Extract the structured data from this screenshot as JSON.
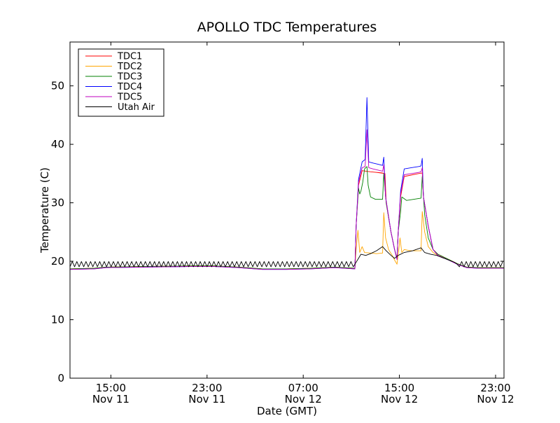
{
  "chart_data": {
    "type": "line",
    "title": "APOLLO TDC Temperatures",
    "xlabel": "Date (GMT)",
    "ylabel": "Temperature (C)",
    "x_unit": "hours from Nov 11 11:00 GMT",
    "xlim": [
      0,
      36.1
    ],
    "ylim": [
      0,
      57.5
    ],
    "yticks": [
      0,
      10,
      20,
      30,
      40,
      50
    ],
    "xticks": [
      {
        "x": 3.4,
        "time": "15:00",
        "date": "Nov 11"
      },
      {
        "x": 11.4,
        "time": "23:00",
        "date": "Nov 11"
      },
      {
        "x": 19.4,
        "time": "07:00",
        "date": "Nov 12"
      },
      {
        "x": 27.4,
        "time": "15:00",
        "date": "Nov 12"
      },
      {
        "x": 35.4,
        "time": "23:00",
        "date": "Nov 12"
      }
    ],
    "grid": false,
    "legend_position": "top-left",
    "series": [
      {
        "name": "TDC1",
        "color": "#ff0000",
        "points": [
          [
            0,
            18.7
          ],
          [
            2,
            18.8
          ],
          [
            3,
            19.0
          ],
          [
            6,
            19.1
          ],
          [
            10,
            19.2
          ],
          [
            12,
            19.2
          ],
          [
            14,
            19.0
          ],
          [
            16,
            18.7
          ],
          [
            18,
            18.7
          ],
          [
            20,
            18.8
          ],
          [
            22,
            19.0
          ],
          [
            23.7,
            18.8
          ],
          [
            23.8,
            26
          ],
          [
            24.0,
            33
          ],
          [
            24.3,
            35.5
          ],
          [
            25,
            35.3
          ],
          [
            26,
            35.1
          ],
          [
            25.5,
            35.2
          ],
          [
            26.2,
            35.0
          ],
          [
            26.3,
            30
          ],
          [
            26.7,
            25
          ],
          [
            27.0,
            22
          ],
          [
            27.2,
            20.5
          ],
          [
            27.3,
            25
          ],
          [
            27.5,
            31
          ],
          [
            27.8,
            34.5
          ],
          [
            28.5,
            34.8
          ],
          [
            29.0,
            35.0
          ],
          [
            29.3,
            35.1
          ],
          [
            29.4,
            31
          ],
          [
            29.8,
            26
          ],
          [
            30.2,
            22
          ],
          [
            30.6,
            21.2
          ],
          [
            31.5,
            20.3
          ],
          [
            32.2,
            19.6
          ],
          [
            33,
            19.0
          ],
          [
            34,
            18.9
          ],
          [
            36.1,
            18.9
          ]
        ]
      },
      {
        "name": "TDC2",
        "color": "#ffa500",
        "points": [
          [
            0,
            18.7
          ],
          [
            2,
            18.8
          ],
          [
            3,
            19.0
          ],
          [
            6,
            19.1
          ],
          [
            10,
            19.2
          ],
          [
            12,
            19.2
          ],
          [
            14,
            19.0
          ],
          [
            16,
            18.7
          ],
          [
            18,
            18.7
          ],
          [
            20,
            18.8
          ],
          [
            22,
            19.0
          ],
          [
            23.7,
            18.8
          ],
          [
            23.8,
            22
          ],
          [
            23.95,
            25.3
          ],
          [
            24.1,
            21.5
          ],
          [
            24.3,
            22.5
          ],
          [
            24.5,
            21.5
          ],
          [
            25,
            21.4
          ],
          [
            25.5,
            21.3
          ],
          [
            26.0,
            21.4
          ],
          [
            26.1,
            28.3
          ],
          [
            26.25,
            24
          ],
          [
            26.5,
            22
          ],
          [
            26.8,
            21
          ],
          [
            27.0,
            20.2
          ],
          [
            27.2,
            19.5
          ],
          [
            27.35,
            22
          ],
          [
            27.45,
            24
          ],
          [
            27.6,
            21.5
          ],
          [
            27.8,
            22.0
          ],
          [
            28.3,
            21.8
          ],
          [
            28.8,
            21.8
          ],
          [
            29.2,
            21.8
          ],
          [
            29.3,
            28.5
          ],
          [
            29.5,
            25
          ],
          [
            29.8,
            22.5
          ],
          [
            30.2,
            21.5
          ],
          [
            30.6,
            21.0
          ],
          [
            31.5,
            20.3
          ],
          [
            32.2,
            19.6
          ],
          [
            33,
            19.0
          ],
          [
            34,
            18.9
          ],
          [
            36.1,
            18.9
          ]
        ]
      },
      {
        "name": "TDC3",
        "color": "#008000",
        "points": [
          [
            0,
            18.7
          ],
          [
            2,
            18.8
          ],
          [
            3,
            19.0
          ],
          [
            6,
            19.1
          ],
          [
            10,
            19.2
          ],
          [
            12,
            19.2
          ],
          [
            14,
            19.0
          ],
          [
            16,
            18.7
          ],
          [
            18,
            18.7
          ],
          [
            20,
            18.8
          ],
          [
            22,
            19.0
          ],
          [
            23.7,
            18.8
          ],
          [
            23.8,
            26
          ],
          [
            24.0,
            32.5
          ],
          [
            24.1,
            31.5
          ],
          [
            24.2,
            32
          ],
          [
            24.35,
            33.5
          ],
          [
            24.5,
            35.8
          ],
          [
            24.7,
            36.2
          ],
          [
            24.8,
            33
          ],
          [
            25.0,
            31
          ],
          [
            25.4,
            30.6
          ],
          [
            26.0,
            30.6
          ],
          [
            26.1,
            35.0
          ],
          [
            26.3,
            30
          ],
          [
            26.7,
            25
          ],
          [
            27.0,
            22
          ],
          [
            27.2,
            20.5
          ],
          [
            27.3,
            25
          ],
          [
            27.5,
            28.5
          ],
          [
            27.6,
            31
          ],
          [
            28.0,
            30.4
          ],
          [
            28.6,
            30.6
          ],
          [
            29.2,
            30.8
          ],
          [
            29.3,
            34.5
          ],
          [
            29.5,
            28
          ],
          [
            29.8,
            24
          ],
          [
            30.2,
            22
          ],
          [
            30.6,
            21.2
          ],
          [
            31.5,
            20.3
          ],
          [
            32.2,
            19.6
          ],
          [
            33,
            19.0
          ],
          [
            34,
            18.9
          ],
          [
            36.1,
            18.9
          ]
        ]
      },
      {
        "name": "TDC4",
        "color": "#0000ff",
        "points": [
          [
            0,
            18.6
          ],
          [
            2,
            18.7
          ],
          [
            3,
            18.9
          ],
          [
            6,
            19.0
          ],
          [
            10,
            19.1
          ],
          [
            12,
            19.1
          ],
          [
            14,
            18.9
          ],
          [
            16,
            18.6
          ],
          [
            18,
            18.6
          ],
          [
            20,
            18.7
          ],
          [
            22,
            18.9
          ],
          [
            23.7,
            18.7
          ],
          [
            23.8,
            26
          ],
          [
            24.0,
            34
          ],
          [
            24.3,
            37.0
          ],
          [
            24.55,
            37.4
          ],
          [
            24.7,
            48.0
          ],
          [
            24.85,
            37.0
          ],
          [
            25.2,
            36.8
          ],
          [
            25.6,
            36.6
          ],
          [
            26.0,
            36.4
          ],
          [
            26.1,
            37.8
          ],
          [
            26.25,
            31
          ],
          [
            26.7,
            25
          ],
          [
            27.0,
            22
          ],
          [
            27.2,
            20.3
          ],
          [
            27.3,
            25
          ],
          [
            27.5,
            32
          ],
          [
            27.8,
            35.8
          ],
          [
            28.4,
            36.0
          ],
          [
            29.0,
            36.2
          ],
          [
            29.2,
            36.3
          ],
          [
            29.3,
            37.6
          ],
          [
            29.4,
            31
          ],
          [
            29.8,
            26
          ],
          [
            30.2,
            22
          ],
          [
            30.6,
            21.0
          ],
          [
            31.5,
            20.2
          ],
          [
            32.2,
            19.5
          ],
          [
            33,
            18.9
          ],
          [
            34,
            18.8
          ],
          [
            36.1,
            18.8
          ]
        ]
      },
      {
        "name": "TDC5",
        "color": "#bf00bf",
        "points": [
          [
            0,
            18.6
          ],
          [
            2,
            18.7
          ],
          [
            3,
            18.9
          ],
          [
            6,
            19.0
          ],
          [
            10,
            19.1
          ],
          [
            12,
            19.1
          ],
          [
            14,
            18.9
          ],
          [
            16,
            18.6
          ],
          [
            18,
            18.6
          ],
          [
            20,
            18.7
          ],
          [
            22,
            18.9
          ],
          [
            23.7,
            18.7
          ],
          [
            23.8,
            26
          ],
          [
            24.0,
            33.5
          ],
          [
            24.3,
            36.0
          ],
          [
            24.55,
            36.2
          ],
          [
            24.7,
            42.5
          ],
          [
            24.85,
            36.0
          ],
          [
            25.2,
            35.8
          ],
          [
            25.6,
            35.6
          ],
          [
            26.0,
            35.4
          ],
          [
            26.1,
            36.5
          ],
          [
            26.25,
            31
          ],
          [
            26.7,
            25
          ],
          [
            27.0,
            22
          ],
          [
            27.2,
            20.3
          ],
          [
            27.3,
            25
          ],
          [
            27.5,
            31.5
          ],
          [
            27.8,
            34.8
          ],
          [
            28.4,
            35.0
          ],
          [
            29.0,
            35.2
          ],
          [
            29.2,
            35.3
          ],
          [
            29.3,
            36.0
          ],
          [
            29.4,
            31
          ],
          [
            29.8,
            26
          ],
          [
            30.2,
            22
          ],
          [
            30.6,
            21.0
          ],
          [
            31.5,
            20.2
          ],
          [
            32.2,
            19.5
          ],
          [
            33,
            18.9
          ],
          [
            34,
            18.8
          ],
          [
            36.1,
            18.8
          ]
        ]
      },
      {
        "name": "Utah Air",
        "color": "#000000",
        "base": 19.5,
        "zigzag_amplitude": 0.45,
        "zigzag_period_hours": 0.38,
        "points": [
          [
            23.7,
            19.5
          ],
          [
            24.0,
            20.5
          ],
          [
            24.2,
            21.2
          ],
          [
            24.6,
            21.0
          ],
          [
            25.0,
            21.3
          ],
          [
            25.5,
            21.8
          ],
          [
            26.0,
            22.5
          ],
          [
            26.3,
            21.8
          ],
          [
            26.7,
            21.0
          ],
          [
            27.0,
            20.5
          ],
          [
            27.3,
            21.0
          ],
          [
            27.8,
            21.5
          ],
          [
            28.5,
            21.8
          ],
          [
            29.2,
            22.3
          ],
          [
            29.5,
            21.5
          ],
          [
            30.0,
            21.2
          ],
          [
            30.5,
            21.0
          ],
          [
            31.0,
            20.6
          ],
          [
            31.5,
            20.2
          ],
          [
            32.0,
            19.8
          ],
          [
            32.2,
            19.5
          ]
        ]
      }
    ]
  }
}
